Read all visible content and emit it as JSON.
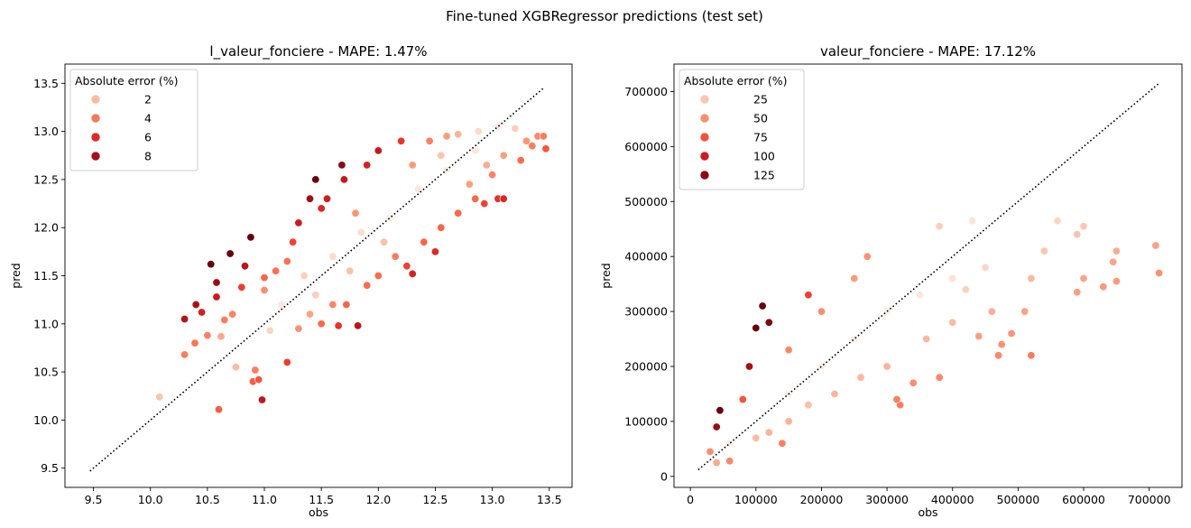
{
  "suptitle": "Fine-tuned XGBRegressor predictions (test set)",
  "chart_data": [
    {
      "type": "scatter",
      "title": "l_valeur_fonciere - MAPE: 1.47%",
      "xlabel": "obs",
      "ylabel": "pred",
      "xlim": [
        9.25,
        13.7
      ],
      "ylim": [
        9.3,
        13.7
      ],
      "xticks": [
        "9.5",
        "10.0",
        "10.5",
        "11.0",
        "11.5",
        "12.0",
        "12.5",
        "13.0",
        "13.5"
      ],
      "yticks": [
        "9.5",
        "10.0",
        "10.5",
        "11.0",
        "11.5",
        "12.0",
        "12.5",
        "13.0",
        "13.5"
      ],
      "reference_line": {
        "style": "dotted",
        "color": "#000000",
        "from": [
          9.47,
          9.47
        ],
        "to": [
          13.46,
          13.46
        ]
      },
      "hue": "Absolute error (%)",
      "legend": {
        "title": "Absolute error (%)",
        "position": "top-left",
        "entries": [
          {
            "label": "2",
            "color": "#fcbba1"
          },
          {
            "label": "4",
            "color": "#f6795b"
          },
          {
            "label": "6",
            "color": "#dd2a25"
          },
          {
            "label": "8",
            "color": "#a50f15"
          }
        ]
      },
      "color_scale": {
        "min": 0,
        "max": 9,
        "colormap": "Reds"
      },
      "points": [
        [
          10.08,
          10.24,
          1.6
        ],
        [
          10.3,
          10.68,
          3.7
        ],
        [
          10.3,
          11.05,
          7.3
        ],
        [
          10.39,
          10.8,
          3.9
        ],
        [
          10.4,
          11.2,
          7.7
        ],
        [
          10.45,
          11.12,
          6.4
        ],
        [
          10.5,
          10.88,
          3.6
        ],
        [
          10.53,
          11.62,
          10.4
        ],
        [
          10.58,
          11.43,
          8.0
        ],
        [
          10.58,
          11.28,
          6.6
        ],
        [
          10.6,
          10.11,
          4.6
        ],
        [
          10.62,
          10.87,
          2.4
        ],
        [
          10.65,
          11.04,
          3.7
        ],
        [
          10.7,
          11.73,
          9.6
        ],
        [
          10.72,
          11.1,
          3.5
        ],
        [
          10.75,
          10.55,
          1.9
        ],
        [
          10.8,
          11.38,
          5.4
        ],
        [
          10.83,
          11.6,
          7.1
        ],
        [
          10.88,
          11.9,
          9.4
        ],
        [
          10.9,
          10.4,
          4.6
        ],
        [
          10.92,
          10.52,
          3.7
        ],
        [
          10.95,
          10.42,
          4.8
        ],
        [
          10.98,
          10.21,
          7.0
        ],
        [
          11.0,
          11.48,
          4.4
        ],
        [
          11.05,
          10.93,
          1.1
        ],
        [
          11.2,
          10.6,
          5.4
        ],
        [
          11.4,
          12.3,
          7.9
        ],
        [
          11.45,
          12.5,
          9.2
        ],
        [
          11.55,
          12.3,
          6.5
        ],
        [
          11.68,
          12.65,
          8.3
        ],
        [
          11.65,
          10.98,
          5.7
        ],
        [
          11.82,
          10.98,
          7.1
        ],
        [
          11.72,
          11.2,
          4.4
        ],
        [
          12.2,
          12.9,
          5.7
        ],
        [
          12.3,
          11.52,
          6.3
        ],
        [
          12.5,
          11.75,
          6.0
        ],
        [
          12.85,
          12.3,
          4.3
        ],
        [
          12.93,
          12.25,
          5.3
        ],
        [
          13.05,
          12.3,
          5.8
        ],
        [
          13.0,
          12.55,
          3.5
        ],
        [
          13.1,
          12.3,
          6.1
        ],
        [
          13.35,
          12.85,
          3.7
        ],
        [
          13.4,
          12.95,
          3.4
        ],
        [
          13.47,
          12.82,
          4.8
        ],
        [
          13.45,
          12.95,
          3.7
        ],
        [
          13.3,
          12.9,
          3.0
        ],
        [
          13.2,
          13.03,
          1.3
        ],
        [
          13.05,
          13.05,
          0.2
        ],
        [
          12.88,
          13.0,
          0.9
        ],
        [
          12.7,
          12.97,
          2.1
        ],
        [
          12.55,
          12.75,
          1.6
        ],
        [
          12.45,
          12.9,
          3.6
        ],
        [
          12.6,
          12.95,
          2.8
        ],
        [
          12.3,
          12.65,
          2.8
        ],
        [
          12.0,
          12.8,
          6.7
        ],
        [
          11.9,
          12.65,
          6.3
        ],
        [
          11.7,
          12.5,
          6.8
        ],
        [
          11.8,
          12.15,
          3.0
        ],
        [
          11.25,
          11.85,
          5.3
        ],
        [
          11.3,
          12.05,
          6.6
        ],
        [
          11.5,
          12.2,
          6.1
        ],
        [
          11.2,
          11.65,
          4.0
        ],
        [
          11.1,
          11.55,
          4.1
        ],
        [
          11.0,
          11.35,
          3.2
        ],
        [
          11.15,
          11.2,
          0.4
        ],
        [
          11.35,
          11.5,
          1.3
        ],
        [
          11.6,
          11.7,
          0.9
        ],
        [
          11.85,
          11.95,
          0.8
        ],
        [
          12.1,
          12.1,
          0.0
        ],
        [
          12.35,
          12.4,
          0.4
        ],
        [
          12.6,
          12.6,
          0.0
        ],
        [
          12.85,
          12.8,
          0.4
        ],
        [
          11.4,
          11.1,
          2.6
        ],
        [
          11.5,
          11.0,
          4.3
        ],
        [
          11.6,
          11.2,
          3.4
        ],
        [
          11.9,
          11.4,
          4.2
        ],
        [
          12.0,
          11.5,
          4.2
        ],
        [
          12.15,
          11.7,
          3.7
        ],
        [
          12.25,
          11.6,
          5.3
        ],
        [
          12.4,
          11.85,
          4.4
        ],
        [
          12.55,
          12.0,
          4.4
        ],
        [
          12.7,
          12.15,
          4.3
        ],
        [
          12.8,
          12.45,
          2.7
        ],
        [
          12.95,
          12.65,
          2.3
        ],
        [
          13.1,
          12.75,
          2.7
        ],
        [
          13.25,
          12.7,
          4.2
        ],
        [
          11.3,
          10.95,
          3.1
        ],
        [
          11.45,
          11.3,
          1.3
        ],
        [
          11.75,
          11.55,
          1.7
        ],
        [
          12.05,
          11.85,
          1.7
        ]
      ]
    },
    {
      "type": "scatter",
      "title": "valeur_fonciere - MAPE: 17.12%",
      "xlabel": "obs",
      "ylabel": "pred",
      "xlim": [
        -25000,
        750000
      ],
      "ylim": [
        -20000,
        750000
      ],
      "xticks": [
        "0",
        "100000",
        "200000",
        "300000",
        "400000",
        "500000",
        "600000",
        "700000"
      ],
      "yticks": [
        "0",
        "100000",
        "200000",
        "300000",
        "400000",
        "500000",
        "600000",
        "700000"
      ],
      "reference_line": {
        "style": "dotted",
        "color": "#000000",
        "from": [
          12000,
          12000
        ],
        "to": [
          715000,
          715000
        ]
      },
      "hue": "Absolute error (%)",
      "legend": {
        "title": "Absolute error (%)",
        "position": "top-left",
        "entries": [
          {
            "label": "25",
            "color": "#fcc5ad"
          },
          {
            "label": "50",
            "color": "#fb8f6f"
          },
          {
            "label": "75",
            "color": "#f0543d"
          },
          {
            "label": "100",
            "color": "#cd1c20"
          },
          {
            "label": "125",
            "color": "#8e0912"
          }
        ]
      },
      "color_scale": {
        "min": 0,
        "max": 140,
        "colormap": "Reds"
      },
      "points": [
        [
          30000,
          45000,
          50
        ],
        [
          40000,
          90000,
          125
        ],
        [
          45000,
          120000,
          167
        ],
        [
          40000,
          25000,
          38
        ],
        [
          60000,
          28000,
          53
        ],
        [
          60000,
          60000,
          0
        ],
        [
          80000,
          140000,
          75
        ],
        [
          90000,
          200000,
          122
        ],
        [
          100000,
          270000,
          170
        ],
        [
          110000,
          310000,
          182
        ],
        [
          120000,
          280000,
          133
        ],
        [
          140000,
          60000,
          57
        ],
        [
          150000,
          230000,
          53
        ],
        [
          180000,
          330000,
          83
        ],
        [
          200000,
          300000,
          50
        ],
        [
          250000,
          360000,
          44
        ],
        [
          270000,
          400000,
          48
        ],
        [
          320000,
          130000,
          59
        ],
        [
          315000,
          140000,
          56
        ],
        [
          340000,
          170000,
          50
        ],
        [
          380000,
          180000,
          53
        ],
        [
          380000,
          455000,
          20
        ],
        [
          430000,
          465000,
          8
        ],
        [
          470000,
          220000,
          53
        ],
        [
          475000,
          240000,
          49
        ],
        [
          490000,
          260000,
          47
        ],
        [
          520000,
          220000,
          58
        ],
        [
          510000,
          300000,
          41
        ],
        [
          520000,
          360000,
          31
        ],
        [
          540000,
          410000,
          24
        ],
        [
          560000,
          465000,
          17
        ],
        [
          590000,
          440000,
          25
        ],
        [
          600000,
          455000,
          24
        ],
        [
          590000,
          335000,
          43
        ],
        [
          600000,
          360000,
          40
        ],
        [
          630000,
          345000,
          45
        ],
        [
          650000,
          355000,
          45
        ],
        [
          645000,
          390000,
          40
        ],
        [
          650000,
          410000,
          37
        ],
        [
          710000,
          420000,
          41
        ],
        [
          715000,
          370000,
          48
        ],
        [
          420000,
          340000,
          19
        ],
        [
          460000,
          300000,
          35
        ],
        [
          440000,
          255000,
          42
        ],
        [
          400000,
          280000,
          30
        ],
        [
          360000,
          250000,
          31
        ],
        [
          300000,
          200000,
          33
        ],
        [
          260000,
          180000,
          31
        ],
        [
          220000,
          150000,
          32
        ],
        [
          180000,
          130000,
          28
        ],
        [
          150000,
          100000,
          33
        ],
        [
          120000,
          80000,
          33
        ],
        [
          100000,
          70000,
          30
        ],
        [
          300000,
          300000,
          0
        ],
        [
          250000,
          250000,
          0
        ],
        [
          200000,
          200000,
          0
        ],
        [
          150000,
          150000,
          0
        ],
        [
          350000,
          330000,
          6
        ],
        [
          400000,
          360000,
          10
        ],
        [
          450000,
          380000,
          16
        ]
      ]
    }
  ]
}
